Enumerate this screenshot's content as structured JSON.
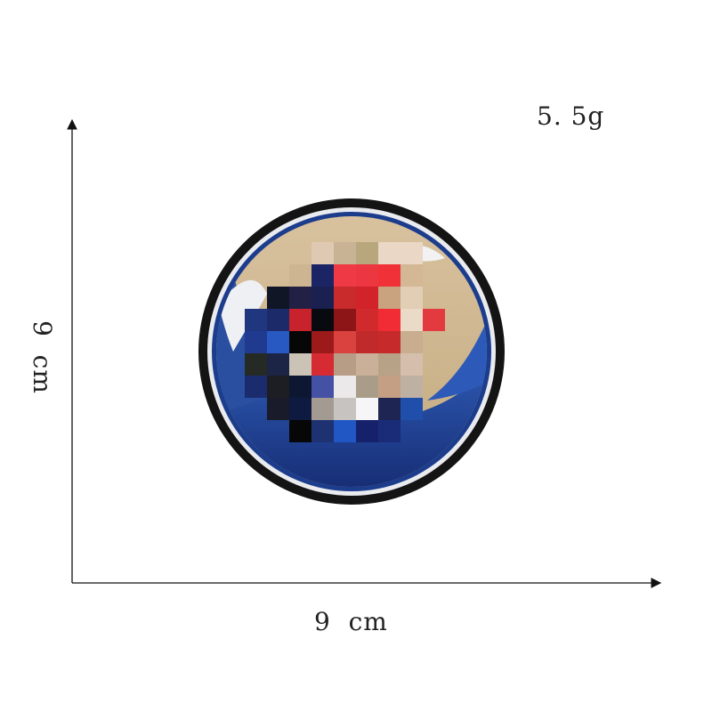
{
  "weight_label": "5. 5g",
  "width_label": "9  cm",
  "height_label": "9  cm",
  "patch": {
    "description_colors": {
      "sand": "#cdb591",
      "wave_blue": "#2a4fa0",
      "deep_blue": "#15276a",
      "foam_white": "#eef0f3",
      "border_black": "#141414",
      "sun_red": "#e0212b"
    },
    "mosaic_colors": [
      [
        "#e0c9b2",
        "#c9b395",
        "#b8a67c",
        "#ead7c6",
        "#ead7c6"
      ],
      [
        "#cdb591",
        "#1b2565",
        "#ef3a45",
        "#ec3640",
        "#f03238",
        "#d4b896"
      ],
      [
        "#111626",
        "#222044",
        "#1a2050",
        "#c92a2c",
        "#d2222a",
        "#c9a27f",
        "#e2cdb5"
      ],
      [
        "#203780",
        "#1c2a6a",
        "#c8232c",
        "#090910",
        "#8e1517",
        "#d02a2c",
        "#f22c34",
        "#eadbc8",
        "#e23a3e"
      ],
      [
        "#1f3a8f",
        "#2859c2",
        "#070707",
        "#9c1a19",
        "#da4240",
        "#c12a2a",
        "#c62a2a",
        "#c8ad8e"
      ],
      [
        "#262a24",
        "#1d2546",
        "#cbc4b6",
        "#d62b33",
        "#b79c86",
        "#cbb099",
        "#b8a287",
        "#d6beac"
      ],
      [
        "#1a2c6e",
        "#1c1e24",
        "#0d1732",
        "#4551a5",
        "#ece9ea",
        "#a99c88",
        "#c49f84",
        "#bfb0a4"
      ],
      [
        "#1a1b2a",
        "#0f1a40",
        "#a39b92",
        "#c6c3c0",
        "#f6f5f7",
        "#1f2552",
        "#1f4faa"
      ],
      [
        "#070707",
        "#1e3272",
        "#2057c4",
        "#16216b",
        "#1a2b78"
      ]
    ]
  }
}
